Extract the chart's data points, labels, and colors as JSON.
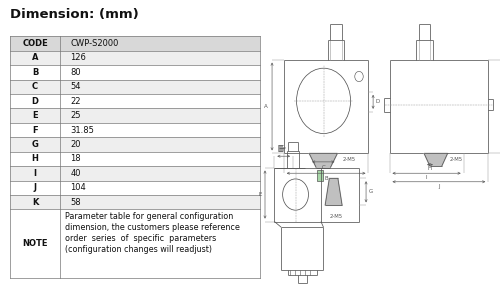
{
  "title": "Dimension: (mm)",
  "table_data": [
    [
      "CODE",
      "CWP-S2000"
    ],
    [
      "A",
      "126"
    ],
    [
      "B",
      "80"
    ],
    [
      "C",
      "54"
    ],
    [
      "D",
      "22"
    ],
    [
      "E",
      "25"
    ],
    [
      "F",
      "31.85"
    ],
    [
      "G",
      "20"
    ],
    [
      "H",
      "18"
    ],
    [
      "I",
      "40"
    ],
    [
      "J",
      "104"
    ],
    [
      "K",
      "58"
    ],
    [
      "NOTE",
      "Parameter table for general configuration\ndimension, the customers please reference\norder  series  of  specific  parameters\n(configuration changes will readjust)"
    ]
  ],
  "bg_color": "#ffffff",
  "table_border_color": "#777777",
  "header_bg": "#d8d8d8",
  "row_bg_even": "#eeeeee",
  "row_bg_odd": "#ffffff",
  "text_color": "#111111",
  "title_fontsize": 9.5,
  "cell_fontsize": 6,
  "note_fontsize": 5.8,
  "dim_color": "#555555",
  "draw_color": "#555555",
  "dash_color": "#999999"
}
